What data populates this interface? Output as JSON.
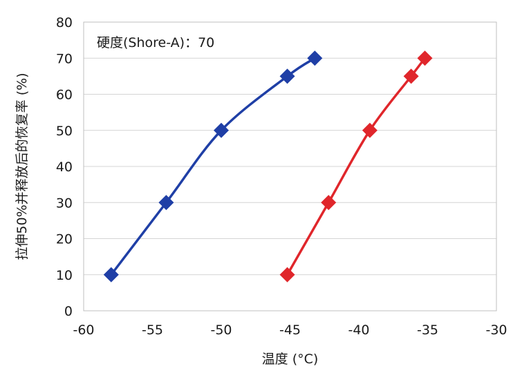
{
  "chart_data": {
    "type": "line",
    "title": "",
    "annotation": "硬度(Shore-A)：70",
    "xlabel": "温度 (°C)",
    "ylabel": "拉伸50%并释放后的恢复率 (%)",
    "xlim": [
      -60,
      -30
    ],
    "ylim": [
      0,
      80
    ],
    "xticks": [
      -60,
      -55,
      -50,
      -45,
      -40,
      -35,
      -30
    ],
    "yticks": [
      0,
      10,
      20,
      30,
      40,
      50,
      60,
      70,
      80
    ],
    "grid": "horizontal",
    "legend": "none",
    "series": [
      {
        "color": "#1f3fa6",
        "marker": "diamond",
        "points": [
          [
            -58,
            10
          ],
          [
            -54,
            30
          ],
          [
            -50,
            50
          ],
          [
            -45.2,
            65
          ],
          [
            -43.2,
            70
          ]
        ]
      },
      {
        "color": "#e0262b",
        "marker": "diamond",
        "points": [
          [
            -45.2,
            10
          ],
          [
            -42.2,
            30
          ],
          [
            -39.2,
            50
          ],
          [
            -36.2,
            65
          ],
          [
            -35.2,
            70
          ]
        ]
      }
    ]
  }
}
